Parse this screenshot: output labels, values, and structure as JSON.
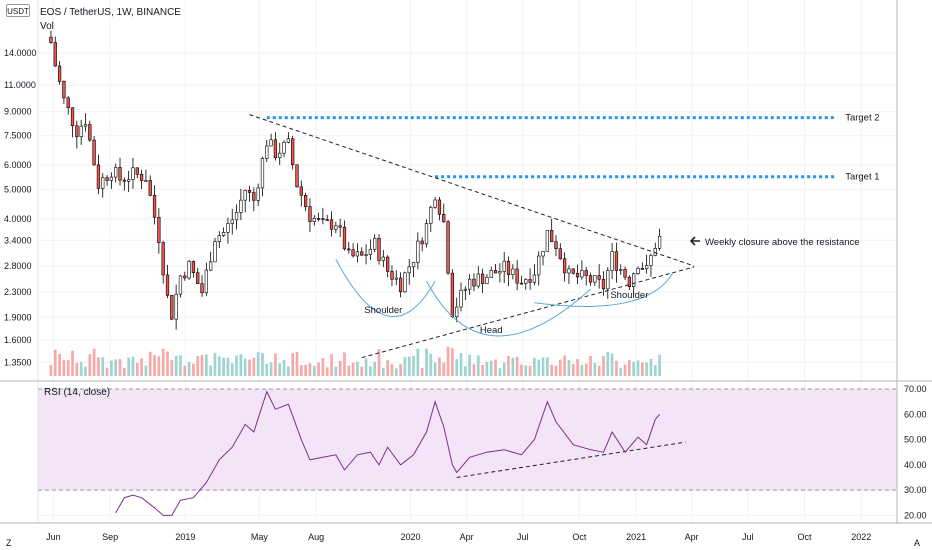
{
  "header": {
    "badge": "USDT",
    "title": "EOS / TetherUS, 1W, BINANCE",
    "volume_label": "Vol"
  },
  "rsi_panel": {
    "label": "RSI (14, close)"
  },
  "corner_labels": {
    "left": "Z",
    "right": "A"
  },
  "colors": {
    "up": "#26a69a",
    "down": "#ef5350",
    "up_vol": "#9dd4cf",
    "down_vol": "#f7a9a7",
    "rsi_line": "#7e2f8e",
    "rsi_band": "#f3e5f7",
    "target_line": "#2196f3",
    "neckline": "#5fa8d3"
  },
  "chart_data": [
    {
      "type": "candlestick",
      "title": "EOS / TetherUS, 1W, BINANCE",
      "y_scale": "log",
      "ylim": [
        1.2,
        18
      ],
      "y_ticks": [
        "14.0000",
        "11.0000",
        "9.0000",
        "7.5000",
        "6.0000",
        "5.0000",
        "4.0000",
        "3.4000",
        "2.8000",
        "2.3000",
        "1.9000",
        "1.6000",
        "1.3500"
      ],
      "x_ticks": [
        "Jun",
        "Sep",
        "2019",
        "May",
        "Aug",
        "2020",
        "Apr",
        "Jul",
        "Oct",
        "2021",
        "Apr",
        "Jul",
        "Oct",
        "2022"
      ],
      "x_range": [
        "2018-05-07",
        "2022-02-28"
      ],
      "price_path": [
        [
          "2018-05-28",
          15.2
        ],
        [
          "2018-06-04",
          12.8
        ],
        [
          "2018-06-18",
          9.8
        ],
        [
          "2018-07-09",
          7.8
        ],
        [
          "2018-07-23",
          8.5
        ],
        [
          "2018-08-13",
          5.2
        ],
        [
          "2018-09-03",
          5.8
        ],
        [
          "2018-09-17",
          5.4
        ],
        [
          "2018-10-08",
          5.6
        ],
        [
          "2018-10-29",
          5.5
        ],
        [
          "2018-11-19",
          3.5
        ],
        [
          "2018-12-03",
          2.2
        ],
        [
          "2018-12-10",
          1.95
        ],
        [
          "2018-12-24",
          2.6
        ],
        [
          "2019-01-07",
          2.8
        ],
        [
          "2019-01-28",
          2.3
        ],
        [
          "2019-02-18",
          3.5
        ],
        [
          "2019-03-04",
          3.6
        ],
        [
          "2019-03-25",
          4.2
        ],
        [
          "2019-04-08",
          5.0
        ],
        [
          "2019-04-22",
          4.6
        ],
        [
          "2019-05-13",
          7.2
        ],
        [
          "2019-05-27",
          6.6
        ],
        [
          "2019-06-17",
          7.0
        ],
        [
          "2019-07-01",
          5.2
        ],
        [
          "2019-07-22",
          4.1
        ],
        [
          "2019-08-12",
          3.8
        ],
        [
          "2019-09-02",
          3.9
        ],
        [
          "2019-09-23",
          3.0
        ],
        [
          "2019-10-14",
          3.0
        ],
        [
          "2019-11-04",
          3.3
        ],
        [
          "2019-11-25",
          2.7
        ],
        [
          "2019-12-16",
          2.45
        ],
        [
          "2020-01-06",
          3.0
        ],
        [
          "2020-01-27",
          3.8
        ],
        [
          "2020-02-10",
          4.9
        ],
        [
          "2020-02-24",
          3.9
        ],
        [
          "2020-03-09",
          2.0
        ],
        [
          "2020-03-16",
          2.1
        ],
        [
          "2020-04-06",
          2.5
        ],
        [
          "2020-05-04",
          2.6
        ],
        [
          "2020-06-01",
          2.75
        ],
        [
          "2020-06-29",
          2.5
        ],
        [
          "2020-07-20",
          2.7
        ],
        [
          "2020-08-10",
          3.6
        ],
        [
          "2020-08-24",
          3.3
        ],
        [
          "2020-09-14",
          2.6
        ],
        [
          "2020-10-12",
          2.55
        ],
        [
          "2020-11-09",
          2.4
        ],
        [
          "2020-11-23",
          3.0
        ],
        [
          "2020-12-21",
          2.5
        ],
        [
          "2021-01-04",
          2.9
        ],
        [
          "2021-01-18",
          2.7
        ],
        [
          "2021-02-01",
          3.3
        ],
        [
          "2021-02-08",
          3.45
        ]
      ]
    },
    {
      "type": "line",
      "title": "RSI (14, close)",
      "ylim": [
        17,
        72
      ],
      "y_ticks": [
        "70.00",
        "60.00",
        "50.00",
        "40.00",
        "30.00",
        "20.00"
      ],
      "band": [
        30,
        70
      ],
      "values": [
        [
          "2018-09-10",
          21
        ],
        [
          "2018-09-24",
          27
        ],
        [
          "2018-10-08",
          28
        ],
        [
          "2018-10-22",
          27
        ],
        [
          "2018-11-12",
          23
        ],
        [
          "2018-11-26",
          20
        ],
        [
          "2018-12-10",
          20
        ],
        [
          "2018-12-24",
          26
        ],
        [
          "2019-01-14",
          27
        ],
        [
          "2019-02-04",
          33
        ],
        [
          "2019-02-25",
          42
        ],
        [
          "2019-03-18",
          47
        ],
        [
          "2019-04-08",
          56
        ],
        [
          "2019-04-22",
          53
        ],
        [
          "2019-05-13",
          69
        ],
        [
          "2019-05-27",
          62
        ],
        [
          "2019-06-17",
          64
        ],
        [
          "2019-07-08",
          50
        ],
        [
          "2019-07-22",
          42
        ],
        [
          "2019-08-12",
          43
        ],
        [
          "2019-09-02",
          44
        ],
        [
          "2019-09-16",
          38
        ],
        [
          "2019-10-07",
          44
        ],
        [
          "2019-10-28",
          45
        ],
        [
          "2019-11-11",
          40
        ],
        [
          "2019-11-25",
          47
        ],
        [
          "2019-12-16",
          40
        ],
        [
          "2020-01-06",
          44
        ],
        [
          "2020-01-27",
          53
        ],
        [
          "2020-02-10",
          65
        ],
        [
          "2020-02-24",
          55
        ],
        [
          "2020-03-09",
          40
        ],
        [
          "2020-03-16",
          37
        ],
        [
          "2020-04-06",
          43
        ],
        [
          "2020-05-04",
          45
        ],
        [
          "2020-06-01",
          46
        ],
        [
          "2020-06-29",
          44
        ],
        [
          "2020-07-20",
          50
        ],
        [
          "2020-08-10",
          65
        ],
        [
          "2020-08-24",
          57
        ],
        [
          "2020-09-21",
          48
        ],
        [
          "2020-10-19",
          46
        ],
        [
          "2020-11-09",
          45
        ],
        [
          "2020-11-23",
          53
        ],
        [
          "2020-12-14",
          45
        ],
        [
          "2021-01-04",
          51
        ],
        [
          "2021-01-18",
          48
        ],
        [
          "2021-02-01",
          58
        ],
        [
          "2021-02-08",
          60
        ]
      ]
    }
  ],
  "annotations": {
    "target1": "Target 1",
    "target2": "Target 2",
    "closure_note": "Weekly closure above the resistance",
    "shoulder_left": "Shoulder",
    "head": "Head",
    "shoulder_right": "Shoulder"
  },
  "drawings": {
    "target2_level": 8.6,
    "target1_level": 5.5,
    "resistance": [
      [
        "2019-04-15",
        8.8
      ],
      [
        "2021-04-05",
        2.8
      ]
    ],
    "support": [
      [
        "2019-10-14",
        1.4
      ],
      [
        "2021-04-05",
        2.78
      ]
    ],
    "rsi_trendline": [
      [
        "2020-03-16",
        35
      ],
      [
        "2021-03-22",
        49
      ]
    ],
    "left_shoulder": [
      [
        "2019-09-02",
        2.95
      ],
      [
        "2019-11-25",
        1.92
      ],
      [
        "2020-02-10",
        2.5
      ]
    ],
    "head_curve": [
      [
        "2020-01-27",
        2.5
      ],
      [
        "2020-05-18",
        1.65
      ],
      [
        "2020-10-19",
        2.35
      ]
    ],
    "right_shoulder": [
      [
        "2020-07-20",
        2.12
      ],
      [
        "2020-12-14",
        2.12
      ],
      [
        "2021-03-01",
        2.65
      ]
    ]
  }
}
